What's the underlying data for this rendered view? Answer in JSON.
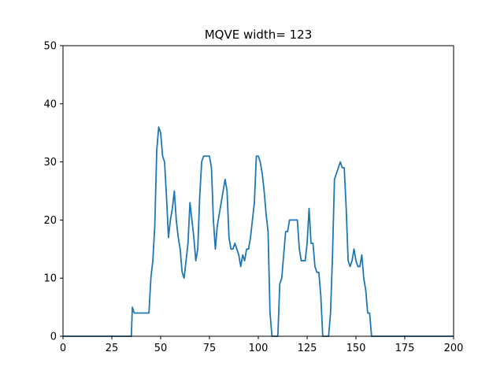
{
  "chart_data": {
    "type": "line",
    "title": "MQVE width= 123",
    "xlabel": "",
    "ylabel": "",
    "xlim": [
      0,
      200
    ],
    "ylim": [
      0,
      50
    ],
    "xticks": [
      0,
      25,
      50,
      75,
      100,
      125,
      150,
      175,
      200
    ],
    "yticks": [
      0,
      10,
      20,
      30,
      40,
      50
    ],
    "grid": false,
    "series": [
      {
        "color": "#1f77b4",
        "points": [
          [
            0,
            0
          ],
          [
            35,
            0
          ],
          [
            35.5,
            5
          ],
          [
            36.5,
            4
          ],
          [
            44,
            4
          ],
          [
            45,
            10
          ],
          [
            46,
            13
          ],
          [
            47,
            19
          ],
          [
            48,
            32
          ],
          [
            49,
            36
          ],
          [
            50,
            35
          ],
          [
            51,
            31
          ],
          [
            52,
            30
          ],
          [
            53,
            24
          ],
          [
            54,
            17
          ],
          [
            55,
            20
          ],
          [
            56,
            22
          ],
          [
            57,
            25
          ],
          [
            58,
            20
          ],
          [
            59,
            17
          ],
          [
            60,
            15
          ],
          [
            61,
            11
          ],
          [
            62,
            10
          ],
          [
            63,
            13
          ],
          [
            64,
            16
          ],
          [
            65,
            23
          ],
          [
            66,
            20
          ],
          [
            67,
            17
          ],
          [
            68,
            13
          ],
          [
            69,
            15
          ],
          [
            70,
            24
          ],
          [
            71,
            30
          ],
          [
            72,
            31
          ],
          [
            74,
            31
          ],
          [
            75,
            31
          ],
          [
            76,
            29
          ],
          [
            77,
            20
          ],
          [
            78,
            15
          ],
          [
            79,
            19
          ],
          [
            80,
            21
          ],
          [
            81,
            23
          ],
          [
            82,
            25
          ],
          [
            83,
            27
          ],
          [
            84,
            25
          ],
          [
            85,
            17
          ],
          [
            86,
            15
          ],
          [
            87,
            15
          ],
          [
            88,
            16
          ],
          [
            89,
            15
          ],
          [
            90,
            14
          ],
          [
            91,
            12
          ],
          [
            92,
            14
          ],
          [
            93,
            13
          ],
          [
            94,
            15
          ],
          [
            95,
            15
          ],
          [
            96,
            17
          ],
          [
            97,
            20
          ],
          [
            98,
            23
          ],
          [
            99,
            31
          ],
          [
            100,
            31
          ],
          [
            101,
            30
          ],
          [
            102,
            28
          ],
          [
            103,
            25
          ],
          [
            104,
            21
          ],
          [
            105,
            18
          ],
          [
            106,
            4
          ],
          [
            107,
            0
          ],
          [
            110,
            0
          ],
          [
            111,
            9
          ],
          [
            112,
            10
          ],
          [
            113,
            14
          ],
          [
            114,
            18
          ],
          [
            115,
            18
          ],
          [
            116,
            20
          ],
          [
            120,
            20
          ],
          [
            121,
            15
          ],
          [
            122,
            13
          ],
          [
            124,
            13
          ],
          [
            125,
            16
          ],
          [
            126,
            22
          ],
          [
            127,
            16
          ],
          [
            128,
            16
          ],
          [
            129,
            12
          ],
          [
            130,
            11
          ],
          [
            131,
            11
          ],
          [
            132,
            7
          ],
          [
            133,
            0
          ],
          [
            136,
            0
          ],
          [
            137,
            4
          ],
          [
            138,
            14
          ],
          [
            139,
            27
          ],
          [
            140,
            28
          ],
          [
            141,
            29
          ],
          [
            142,
            30
          ],
          [
            143,
            29
          ],
          [
            144,
            29
          ],
          [
            145,
            22
          ],
          [
            146,
            13
          ],
          [
            147,
            12
          ],
          [
            148,
            13
          ],
          [
            149,
            15
          ],
          [
            150,
            13
          ],
          [
            151,
            12
          ],
          [
            152,
            12
          ],
          [
            153,
            14
          ],
          [
            154,
            10
          ],
          [
            155,
            8
          ],
          [
            156,
            4
          ],
          [
            157,
            4
          ],
          [
            158,
            0
          ],
          [
            200,
            0
          ]
        ]
      }
    ]
  }
}
